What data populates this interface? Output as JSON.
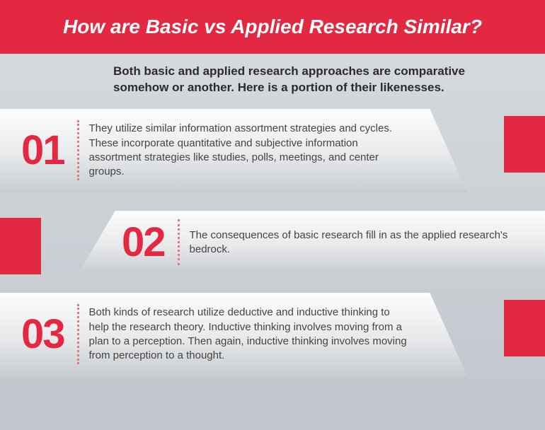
{
  "colors": {
    "header_bg": "#e32941",
    "header_text": "#ffffff",
    "intro_text": "#2b2b2b",
    "number": "#e32941",
    "accent": "#e32941",
    "body_text": "#444444",
    "sep": "#e57885"
  },
  "typography": {
    "title_fontsize": 28,
    "intro_fontsize": 17,
    "number_fontsize": 58,
    "body_fontsize": 15
  },
  "title": "How are Basic vs Applied Research Similar?",
  "intro": "Both basic and applied research approaches are comparative somehow or another. Here is a portion of their likenesses.",
  "items": [
    {
      "number": "01",
      "direction": "right",
      "height": "tall",
      "text": "They utilize similar information assortment strategies and cycles. These incorporate quantitative and subjective information assortment strategies like studies, polls, meetings, and center groups."
    },
    {
      "number": "02",
      "direction": "left",
      "height": "short",
      "text": "The consequences of basic research fill in as the applied research's bedrock."
    },
    {
      "number": "03",
      "direction": "right",
      "height": "tall",
      "text": "Both kinds of research utilize deductive and inductive thinking to help the research theory. Inductive thinking involves moving from a plan to a perception. Then again, inductive thinking involves moving from perception to a thought."
    }
  ]
}
